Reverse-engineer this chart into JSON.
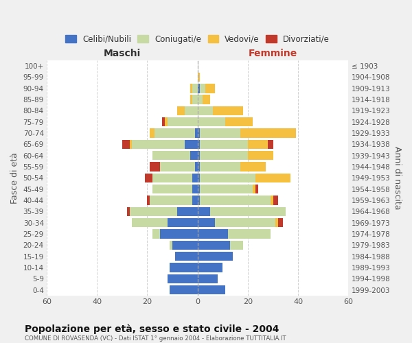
{
  "age_groups": [
    "0-4",
    "5-9",
    "10-14",
    "15-19",
    "20-24",
    "25-29",
    "30-34",
    "35-39",
    "40-44",
    "45-49",
    "50-54",
    "55-59",
    "60-64",
    "65-69",
    "70-74",
    "75-79",
    "80-84",
    "85-89",
    "90-94",
    "95-99",
    "100+"
  ],
  "birth_years": [
    "1999-2003",
    "1994-1998",
    "1989-1993",
    "1984-1988",
    "1979-1983",
    "1974-1978",
    "1969-1973",
    "1964-1968",
    "1959-1963",
    "1954-1958",
    "1949-1953",
    "1944-1948",
    "1939-1943",
    "1934-1938",
    "1929-1933",
    "1924-1928",
    "1919-1923",
    "1914-1918",
    "1909-1913",
    "1904-1908",
    "≤ 1903"
  ],
  "colors": {
    "celibi": "#4472C4",
    "coniugati": "#c8daa4",
    "vedovi": "#f5c040",
    "divorziati": "#c0392b"
  },
  "males": {
    "celibi": [
      11,
      12,
      11,
      9,
      10,
      15,
      12,
      8,
      2,
      2,
      2,
      1,
      3,
      5,
      1,
      0,
      0,
      0,
      0,
      0,
      0
    ],
    "coniugati": [
      0,
      0,
      0,
      0,
      1,
      3,
      14,
      19,
      17,
      16,
      16,
      14,
      15,
      21,
      16,
      12,
      5,
      2,
      2,
      0,
      0
    ],
    "vedovi": [
      0,
      0,
      0,
      0,
      0,
      0,
      0,
      0,
      0,
      0,
      0,
      0,
      0,
      1,
      2,
      1,
      3,
      1,
      1,
      0,
      0
    ],
    "divorziati": [
      0,
      0,
      0,
      0,
      0,
      0,
      0,
      1,
      1,
      0,
      3,
      4,
      0,
      3,
      0,
      1,
      0,
      0,
      0,
      0,
      0
    ]
  },
  "females": {
    "celibi": [
      11,
      8,
      10,
      14,
      13,
      12,
      7,
      5,
      1,
      1,
      1,
      1,
      1,
      1,
      1,
      0,
      0,
      0,
      1,
      0,
      0
    ],
    "coniugati": [
      0,
      0,
      0,
      0,
      5,
      17,
      24,
      30,
      28,
      21,
      22,
      16,
      19,
      19,
      16,
      11,
      6,
      2,
      2,
      0,
      0
    ],
    "vedovi": [
      0,
      0,
      0,
      0,
      0,
      0,
      1,
      0,
      1,
      1,
      14,
      10,
      10,
      8,
      22,
      11,
      12,
      3,
      4,
      1,
      0
    ],
    "divorziati": [
      0,
      0,
      0,
      0,
      0,
      0,
      2,
      0,
      2,
      1,
      0,
      0,
      0,
      2,
      0,
      0,
      0,
      0,
      0,
      0,
      0
    ]
  },
  "xlim": 60,
  "title": "Popolazione per età, sesso e stato civile - 2004",
  "subtitle": "COMUNE DI ROVASENDA (VC) - Dati ISTAT 1° gennaio 2004 - Elaborazione TUTTITALIA.IT",
  "xlabel_left": "Maschi",
  "xlabel_right": "Femmine",
  "ylabel_left": "Fasce di età",
  "ylabel_right": "Anni di nascita",
  "legend_labels": [
    "Celibi/Nubili",
    "Coniugati/e",
    "Vedovi/e",
    "Divorziati/e"
  ],
  "bg_color": "#f0f0f0",
  "plot_bg": "#ffffff",
  "grid_color": "#cccccc"
}
